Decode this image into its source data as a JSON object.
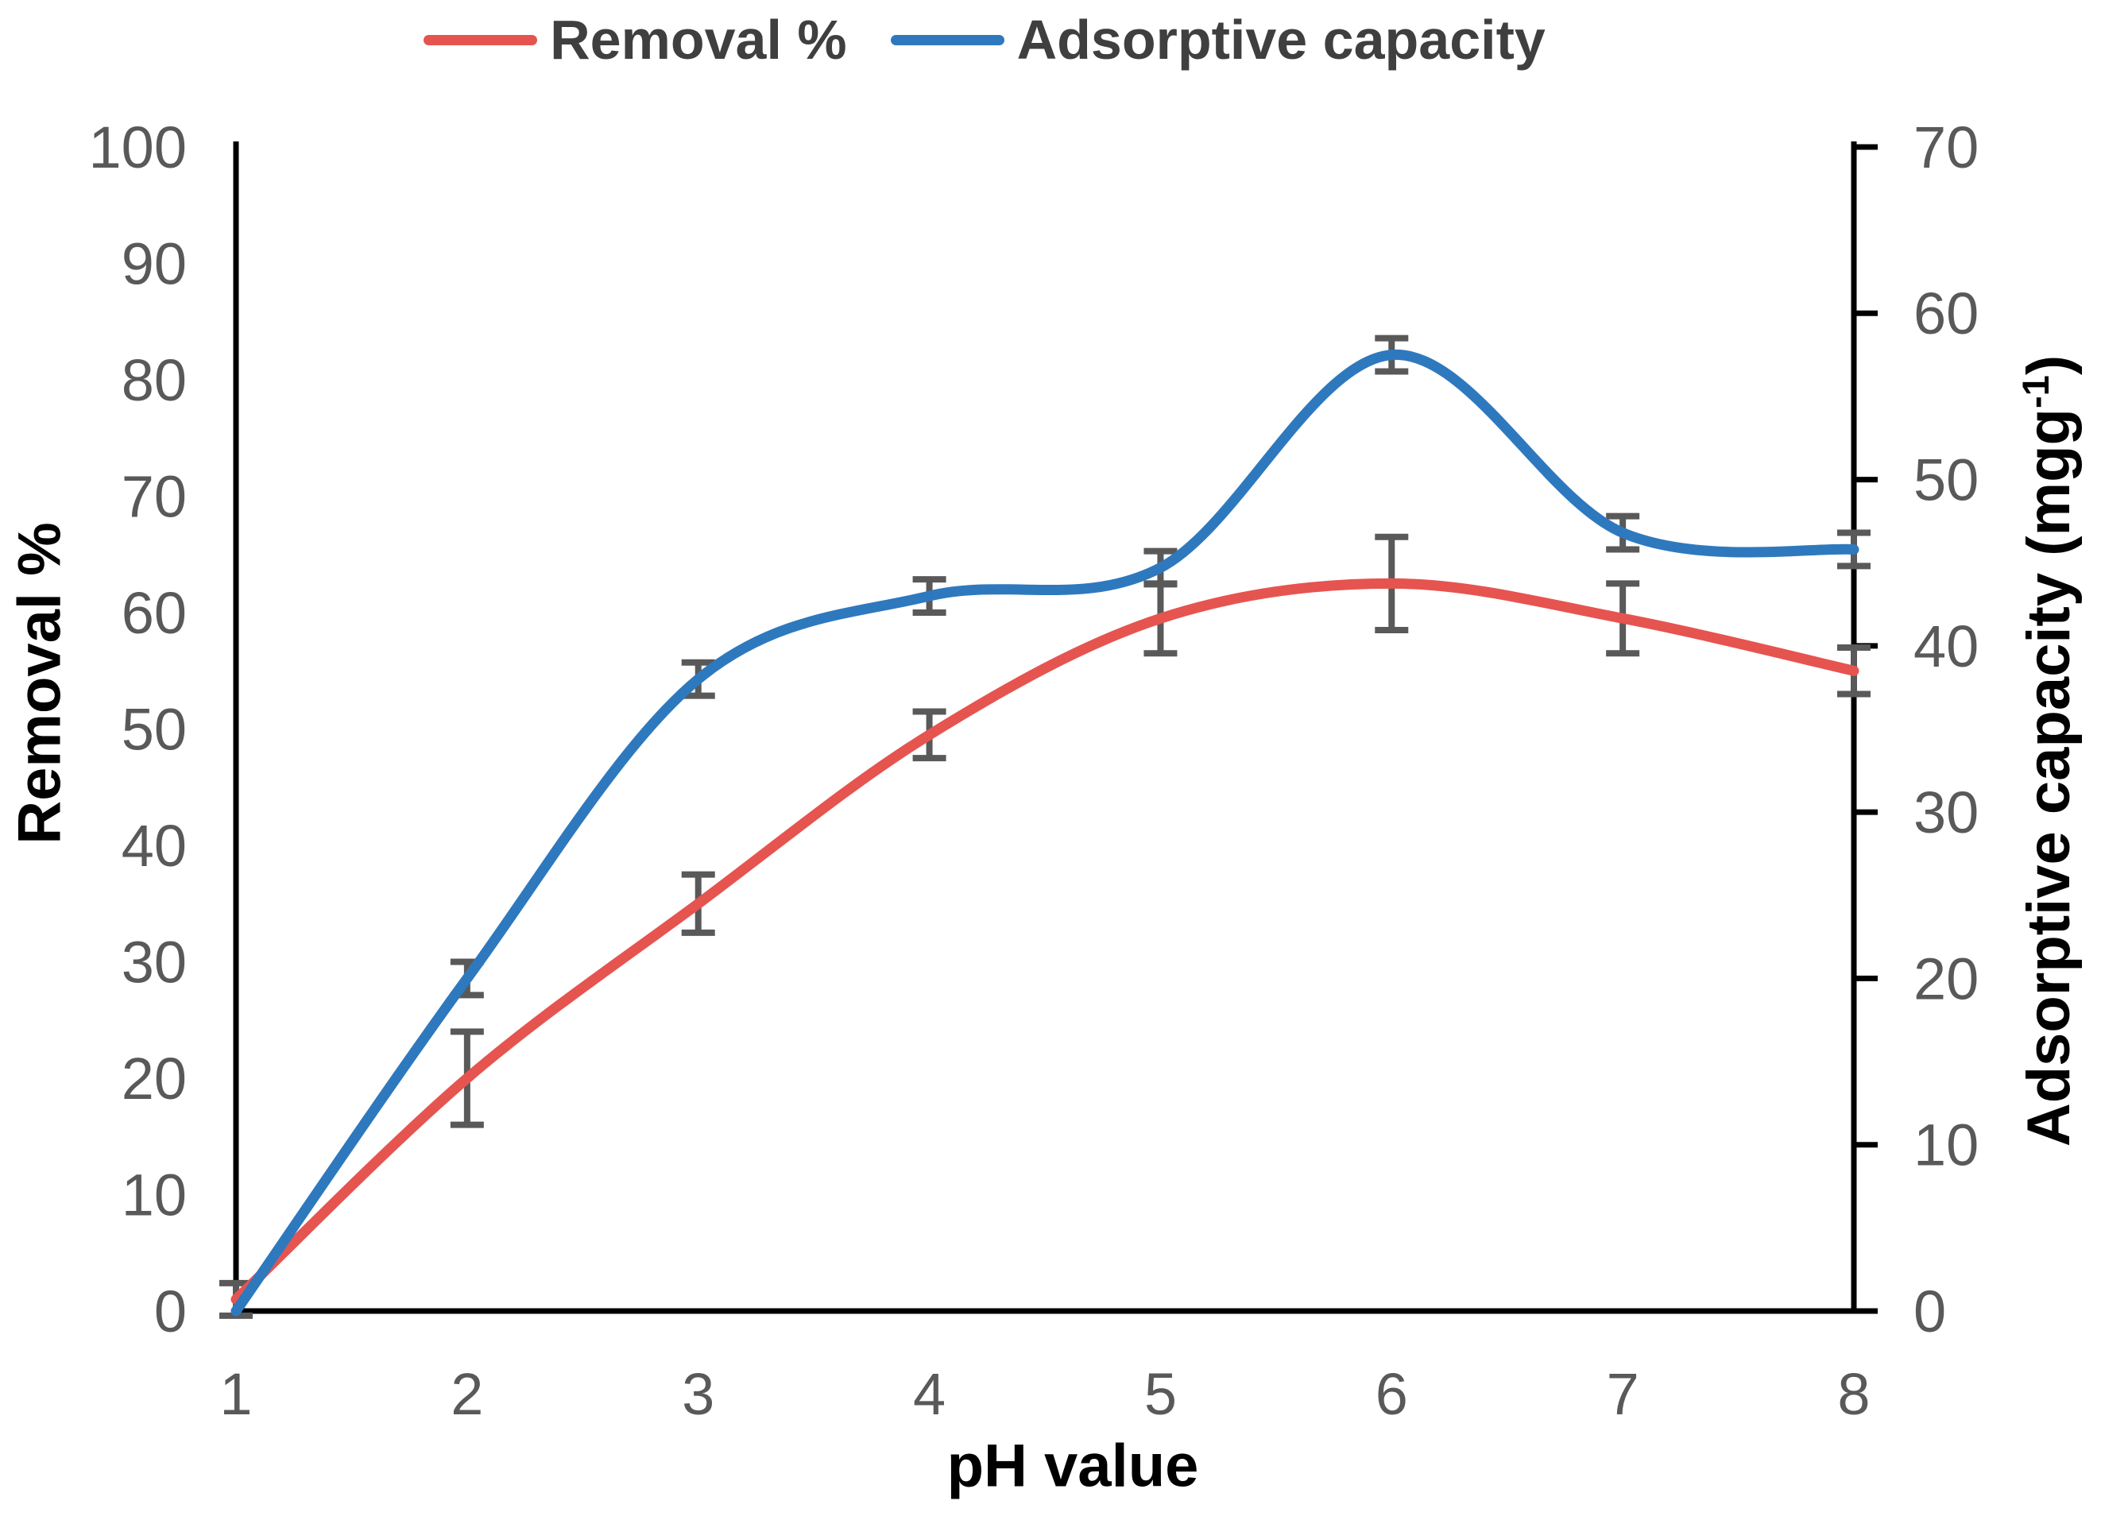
{
  "legend": {
    "items": [
      {
        "label": "Removal %",
        "color": "#e65450"
      },
      {
        "label": "Adsorptive capacity",
        "color": "#2e79be"
      }
    ]
  },
  "chart_data": {
    "type": "line",
    "title": "",
    "x": [
      1,
      2,
      3,
      4,
      5,
      6,
      7,
      8
    ],
    "x_axis": {
      "label": "pH value",
      "ticks": [
        1,
        2,
        3,
        4,
        5,
        6,
        7,
        8
      ],
      "range": [
        1,
        8
      ]
    },
    "left_axis": {
      "label": "Removal %",
      "ticks": [
        0,
        10,
        20,
        30,
        40,
        50,
        60,
        70,
        80,
        90,
        100
      ],
      "range": [
        0,
        100
      ]
    },
    "right_axis": {
      "label": "Adsorptive capacity (mgg⁻¹)",
      "label_parts": {
        "main": "Adsorptive capacity (mgg",
        "sup": "-1",
        "end": ")"
      },
      "ticks": [
        0,
        10,
        20,
        30,
        40,
        50,
        60,
        70
      ],
      "range": [
        0,
        70
      ]
    },
    "series": [
      {
        "name": "Removal %",
        "axis": "left",
        "color": "#e65450",
        "values": [
          1,
          20,
          35,
          49.5,
          59.5,
          62.5,
          59.5,
          55
        ],
        "errors": [
          1.4,
          4,
          2.5,
          2,
          3,
          4,
          3,
          2
        ]
      },
      {
        "name": "Adsorptive capacity",
        "axis": "right",
        "color": "#2e79be",
        "values": [
          0,
          20,
          38,
          43,
          44.7,
          57.5,
          46.8,
          45.8
        ],
        "errors": [
          0,
          1,
          1,
          1,
          1,
          1,
          1,
          1
        ]
      }
    ],
    "error_bar_color": "#595959",
    "tick_label_color": "#595959",
    "axis_color": "#000000",
    "grid": false,
    "legend_position": "top-center"
  }
}
